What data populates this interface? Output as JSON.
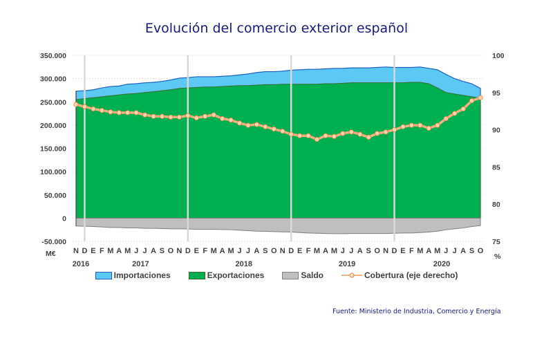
{
  "chart_data": {
    "type": "area",
    "title": "Evolución del comercio exterior español",
    "source": "Fuente: Ministerio de Industria, Comercio y Energía",
    "left_axis": {
      "label": "M€",
      "range": [
        -50000,
        350000
      ],
      "ticks": [
        "350.000",
        "300.000",
        "250.000",
        "200.000",
        "150.000",
        "100.000",
        "50.000",
        "0",
        "-50.000"
      ],
      "tick_values": [
        350000,
        300000,
        250000,
        200000,
        150000,
        100000,
        50000,
        0,
        -50000
      ]
    },
    "right_axis": {
      "label": "%",
      "range": [
        75,
        100
      ],
      "ticks": [
        "100",
        "95",
        "90",
        "85",
        "80",
        "75"
      ],
      "tick_values": [
        100,
        95,
        90,
        85,
        80,
        75
      ]
    },
    "month_labels": [
      "N",
      "D",
      "E",
      "F",
      "M",
      "A",
      "M",
      "J",
      "J",
      "A",
      "S",
      "O",
      "N",
      "D",
      "E",
      "F",
      "M",
      "A",
      "M",
      "J",
      "J",
      "A",
      "S",
      "O",
      "N",
      "D",
      "E",
      "F",
      "M",
      "A",
      "M",
      "J",
      "J",
      "A",
      "S",
      "O",
      "N",
      "D",
      "E",
      "F",
      "M",
      "A",
      "M",
      "J",
      "J",
      "A",
      "S",
      "O"
    ],
    "year_labels": [
      {
        "label": "2016",
        "index": 0
      },
      {
        "label": "2017",
        "index": 7.5
      },
      {
        "label": "2018",
        "index": 19.5
      },
      {
        "label": "2019",
        "index": 31.5
      },
      {
        "label": "2020",
        "index": 42.5
      }
    ],
    "year_separators_at_index": [
      1,
      13,
      25,
      37
    ],
    "series": [
      {
        "name": "Importaciones",
        "axis": "left",
        "color": "#5bc8f5",
        "line_color": "#1f5fbf",
        "values": [
          273000,
          274000,
          276000,
          280000,
          283000,
          284000,
          288000,
          289000,
          291000,
          292000,
          294000,
          297000,
          301000,
          302000,
          304000,
          304000,
          304000,
          305000,
          306000,
          308000,
          310000,
          313000,
          315000,
          315000,
          316000,
          318000,
          319000,
          320000,
          320000,
          321000,
          322000,
          322000,
          323000,
          323000,
          323000,
          324000,
          325000,
          324000,
          324000,
          324000,
          325000,
          322000,
          319000,
          309000,
          300000,
          294000,
          289000,
          279000
        ]
      },
      {
        "name": "Exportaciones",
        "axis": "left",
        "color": "#00b050",
        "line_color": "#3a6b2a",
        "values": [
          255000,
          257000,
          259000,
          261000,
          263000,
          265000,
          267000,
          268000,
          270000,
          272000,
          274000,
          276000,
          279000,
          280000,
          281000,
          282000,
          282000,
          283000,
          284000,
          285000,
          285000,
          286000,
          287000,
          287000,
          288000,
          288000,
          288000,
          288000,
          288000,
          289000,
          289000,
          290000,
          291000,
          291000,
          291000,
          291000,
          291000,
          291000,
          291000,
          292000,
          292000,
          289000,
          280000,
          270000,
          267000,
          264000,
          261000,
          258000
        ]
      },
      {
        "name": "Saldo",
        "axis": "left",
        "color": "#bfbfbf",
        "line_color": "#7f7f7f",
        "values": [
          -17000,
          -17500,
          -18000,
          -19000,
          -20000,
          -20000,
          -21000,
          -21000,
          -22000,
          -22000,
          -22500,
          -23000,
          -23000,
          -23500,
          -24000,
          -24000,
          -24000,
          -24500,
          -25000,
          -26000,
          -27000,
          -28000,
          -28500,
          -29000,
          -29500,
          -30000,
          -31000,
          -32000,
          -32500,
          -33000,
          -33500,
          -33500,
          -33000,
          -33000,
          -33000,
          -33000,
          -33000,
          -32500,
          -32000,
          -32000,
          -31000,
          -30000,
          -28000,
          -25000,
          -23000,
          -21000,
          -18000,
          -16000
        ]
      },
      {
        "name": "Cobertura (eje derecho)",
        "axis": "right",
        "color": "#f4b183",
        "marker_color": "#ed7d31",
        "values": [
          93.4,
          93.1,
          92.8,
          92.6,
          92.4,
          92.3,
          92.3,
          92.3,
          92.0,
          91.8,
          91.8,
          91.7,
          91.7,
          91.9,
          91.6,
          91.8,
          92.0,
          91.5,
          91.3,
          90.9,
          90.6,
          90.7,
          90.4,
          90.1,
          89.8,
          89.4,
          89.2,
          89.2,
          88.7,
          89.2,
          89.1,
          89.5,
          89.7,
          89.4,
          89.0,
          89.5,
          89.7,
          90.0,
          90.4,
          90.6,
          90.6,
          90.2,
          90.6,
          91.5,
          92.2,
          92.8,
          93.9,
          94.3
        ]
      }
    ],
    "legend": [
      "Importaciones",
      "Exportaciones",
      "Saldo",
      "Cobertura (eje derecho)"
    ],
    "legend_position": "bottom",
    "grid": true
  }
}
